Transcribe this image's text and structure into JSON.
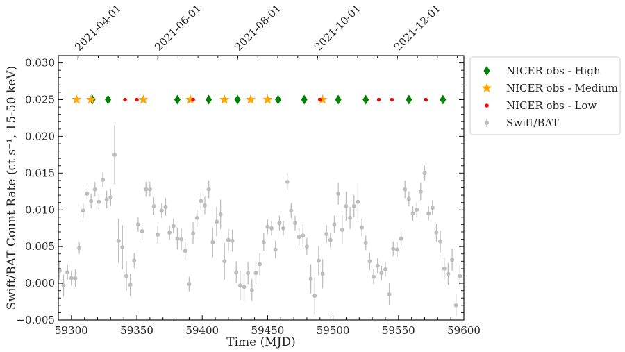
{
  "chart_data": {
    "type": "scatter",
    "xlabel": "Time (MJD)",
    "ylabel": "Swift/BAT Count Rate (ct s⁻¹, 15-50 keV)",
    "xlim": [
      59290,
      59600
    ],
    "ylim": [
      -0.005,
      0.031
    ],
    "x_ticks": [
      59300,
      59350,
      59400,
      59450,
      59500,
      59550,
      59600
    ],
    "y_ticks": [
      -0.005,
      0.0,
      0.005,
      0.01,
      0.015,
      0.02,
      0.025,
      0.03
    ],
    "x_tick_labels": [
      "59300",
      "59350",
      "59400",
      "59450",
      "59500",
      "59550",
      "59600"
    ],
    "y_tick_labels": [
      "−0.005",
      "0.000",
      "0.005",
      "0.010",
      "0.015",
      "0.020",
      "0.025",
      "0.030"
    ],
    "top_axis": {
      "ticks": [
        {
          "mjd": 59305,
          "label": "2021-04-01"
        },
        {
          "mjd": 59366,
          "label": "2021-06-01"
        },
        {
          "mjd": 59427,
          "label": "2021-08-01"
        },
        {
          "mjd": 59488,
          "label": "2021-10-01"
        },
        {
          "mjd": 59549,
          "label": "2021-12-01"
        }
      ]
    },
    "legend_position": "outside-right-top",
    "series": [
      {
        "name": "NICER obs - High",
        "marker": "diamond",
        "color": "#008000",
        "x": [
          59316,
          59328,
          59381,
          59405,
          59427,
          59458,
          59478,
          59504,
          59525,
          59558,
          59584
        ],
        "y": [
          0.025,
          0.025,
          0.025,
          0.025,
          0.025,
          0.025,
          0.025,
          0.025,
          0.025,
          0.025,
          0.025
        ]
      },
      {
        "name": "NICER obs - Medium",
        "marker": "star",
        "color": "#FFA500",
        "x": [
          59304,
          59315,
          59355,
          59391,
          59417,
          59437,
          59450,
          59492
        ],
        "y": [
          0.025,
          0.025,
          0.025,
          0.025,
          0.025,
          0.025,
          0.025,
          0.025
        ]
      },
      {
        "name": "NICER obs - Low",
        "marker": "circle",
        "color": "#FF0000",
        "x": [
          59341,
          59350,
          59393,
          59490,
          59535,
          59545,
          59571
        ],
        "y": [
          0.025,
          0.025,
          0.025,
          0.025,
          0.025,
          0.025,
          0.025
        ]
      },
      {
        "name": "Swift/BAT",
        "marker": "errorbar",
        "color": "#BDBDBD",
        "x": [
          59291,
          59294,
          59297,
          59300,
          59303,
          59306,
          59309,
          59312,
          59315,
          59318,
          59321,
          59324,
          59327,
          59330,
          59333,
          59336,
          59339,
          59342,
          59345,
          59348,
          59351,
          59354,
          59357,
          59360,
          59363,
          59366,
          59369,
          59372,
          59375,
          59378,
          59381,
          59384,
          59387,
          59390,
          59393,
          59396,
          59399,
          59402,
          59405,
          59408,
          59411,
          59414,
          59417,
          59420,
          59423,
          59426,
          59429,
          59432,
          59435,
          59438,
          59441,
          59444,
          59447,
          59450,
          59453,
          59456,
          59459,
          59462,
          59465,
          59468,
          59471,
          59474,
          59477,
          59480,
          59483,
          59486,
          59489,
          59492,
          59495,
          59498,
          59501,
          59504,
          59507,
          59510,
          59513,
          59516,
          59519,
          59522,
          59525,
          59528,
          59531,
          59534,
          59537,
          59540,
          59543,
          59546,
          59549,
          59552,
          59555,
          59558,
          59561,
          59564,
          59567,
          59570,
          59573,
          59576,
          59579,
          59582,
          59585,
          59588,
          59591,
          59594,
          59597
        ],
        "y": [
          0.0017,
          -0.0003,
          0.0015,
          0.0007,
          0.0007,
          0.0048,
          0.0099,
          0.0122,
          0.0112,
          0.0128,
          0.0111,
          0.0141,
          0.0114,
          0.0117,
          0.0175,
          0.0058,
          0.0049,
          0.001,
          -0.0002,
          0.0031,
          0.008,
          0.0071,
          0.0128,
          0.0128,
          0.0105,
          0.0066,
          0.0099,
          0.0104,
          0.0069,
          0.0078,
          0.0061,
          0.006,
          0.0044,
          -0.0001,
          0.0068,
          0.0089,
          0.0112,
          0.0106,
          0.0128,
          0.0056,
          0.0084,
          0.0094,
          0.003,
          0.0059,
          0.0058,
          0.0015,
          -0.0003,
          -0.0005,
          0.0014,
          -0.0009,
          0.0014,
          0.0026,
          0.0056,
          0.0077,
          0.0075,
          0.0046,
          0.0082,
          0.0075,
          0.0138,
          0.0099,
          0.0082,
          0.0063,
          0.0065,
          0.005,
          0.0006,
          -0.0017,
          0.0031,
          0.0013,
          0.0067,
          0.0059,
          0.008,
          0.0122,
          0.0073,
          0.0105,
          0.0089,
          0.0105,
          0.0111,
          0.0076,
          0.0055,
          0.003,
          0.0009,
          0.0024,
          0.0014,
          0.0019,
          -0.0015,
          0.0047,
          0.0046,
          0.0061,
          0.0128,
          0.0115,
          0.0095,
          0.01,
          0.0125,
          0.015,
          0.0095,
          0.0103,
          0.0069,
          0.0057,
          0.002,
          0.0013,
          0.0032,
          -0.003,
          0.001
        ],
        "yerr": [
          0.0012,
          0.0015,
          0.001,
          0.001,
          0.0012,
          0.0008,
          0.001,
          0.0008,
          0.001,
          0.001,
          0.001,
          0.001,
          0.0012,
          0.0012,
          0.004,
          0.003,
          0.003,
          0.002,
          0.0015,
          0.001,
          0.001,
          0.0012,
          0.001,
          0.001,
          0.0012,
          0.0012,
          0.001,
          0.0012,
          0.001,
          0.001,
          0.0015,
          0.0015,
          0.0012,
          0.001,
          0.0015,
          0.0012,
          0.0012,
          0.0012,
          0.0012,
          0.002,
          0.002,
          0.002,
          0.0025,
          0.0015,
          0.0015,
          0.0015,
          0.002,
          0.002,
          0.0015,
          0.0015,
          0.0015,
          0.0015,
          0.0012,
          0.001,
          0.001,
          0.0012,
          0.001,
          0.001,
          0.0012,
          0.001,
          0.001,
          0.0012,
          0.0015,
          0.0012,
          0.002,
          0.0025,
          0.002,
          0.002,
          0.0012,
          0.001,
          0.0012,
          0.0015,
          0.002,
          0.002,
          0.0015,
          0.0015,
          0.0025,
          0.0012,
          0.001,
          0.0012,
          0.001,
          0.001,
          0.001,
          0.001,
          0.0015,
          0.001,
          0.001,
          0.001,
          0.0012,
          0.001,
          0.001,
          0.001,
          0.0012,
          0.001,
          0.001,
          0.001,
          0.0012,
          0.0015,
          0.0015,
          0.0015,
          0.0015,
          0.0015,
          0.0015
        ]
      }
    ]
  }
}
